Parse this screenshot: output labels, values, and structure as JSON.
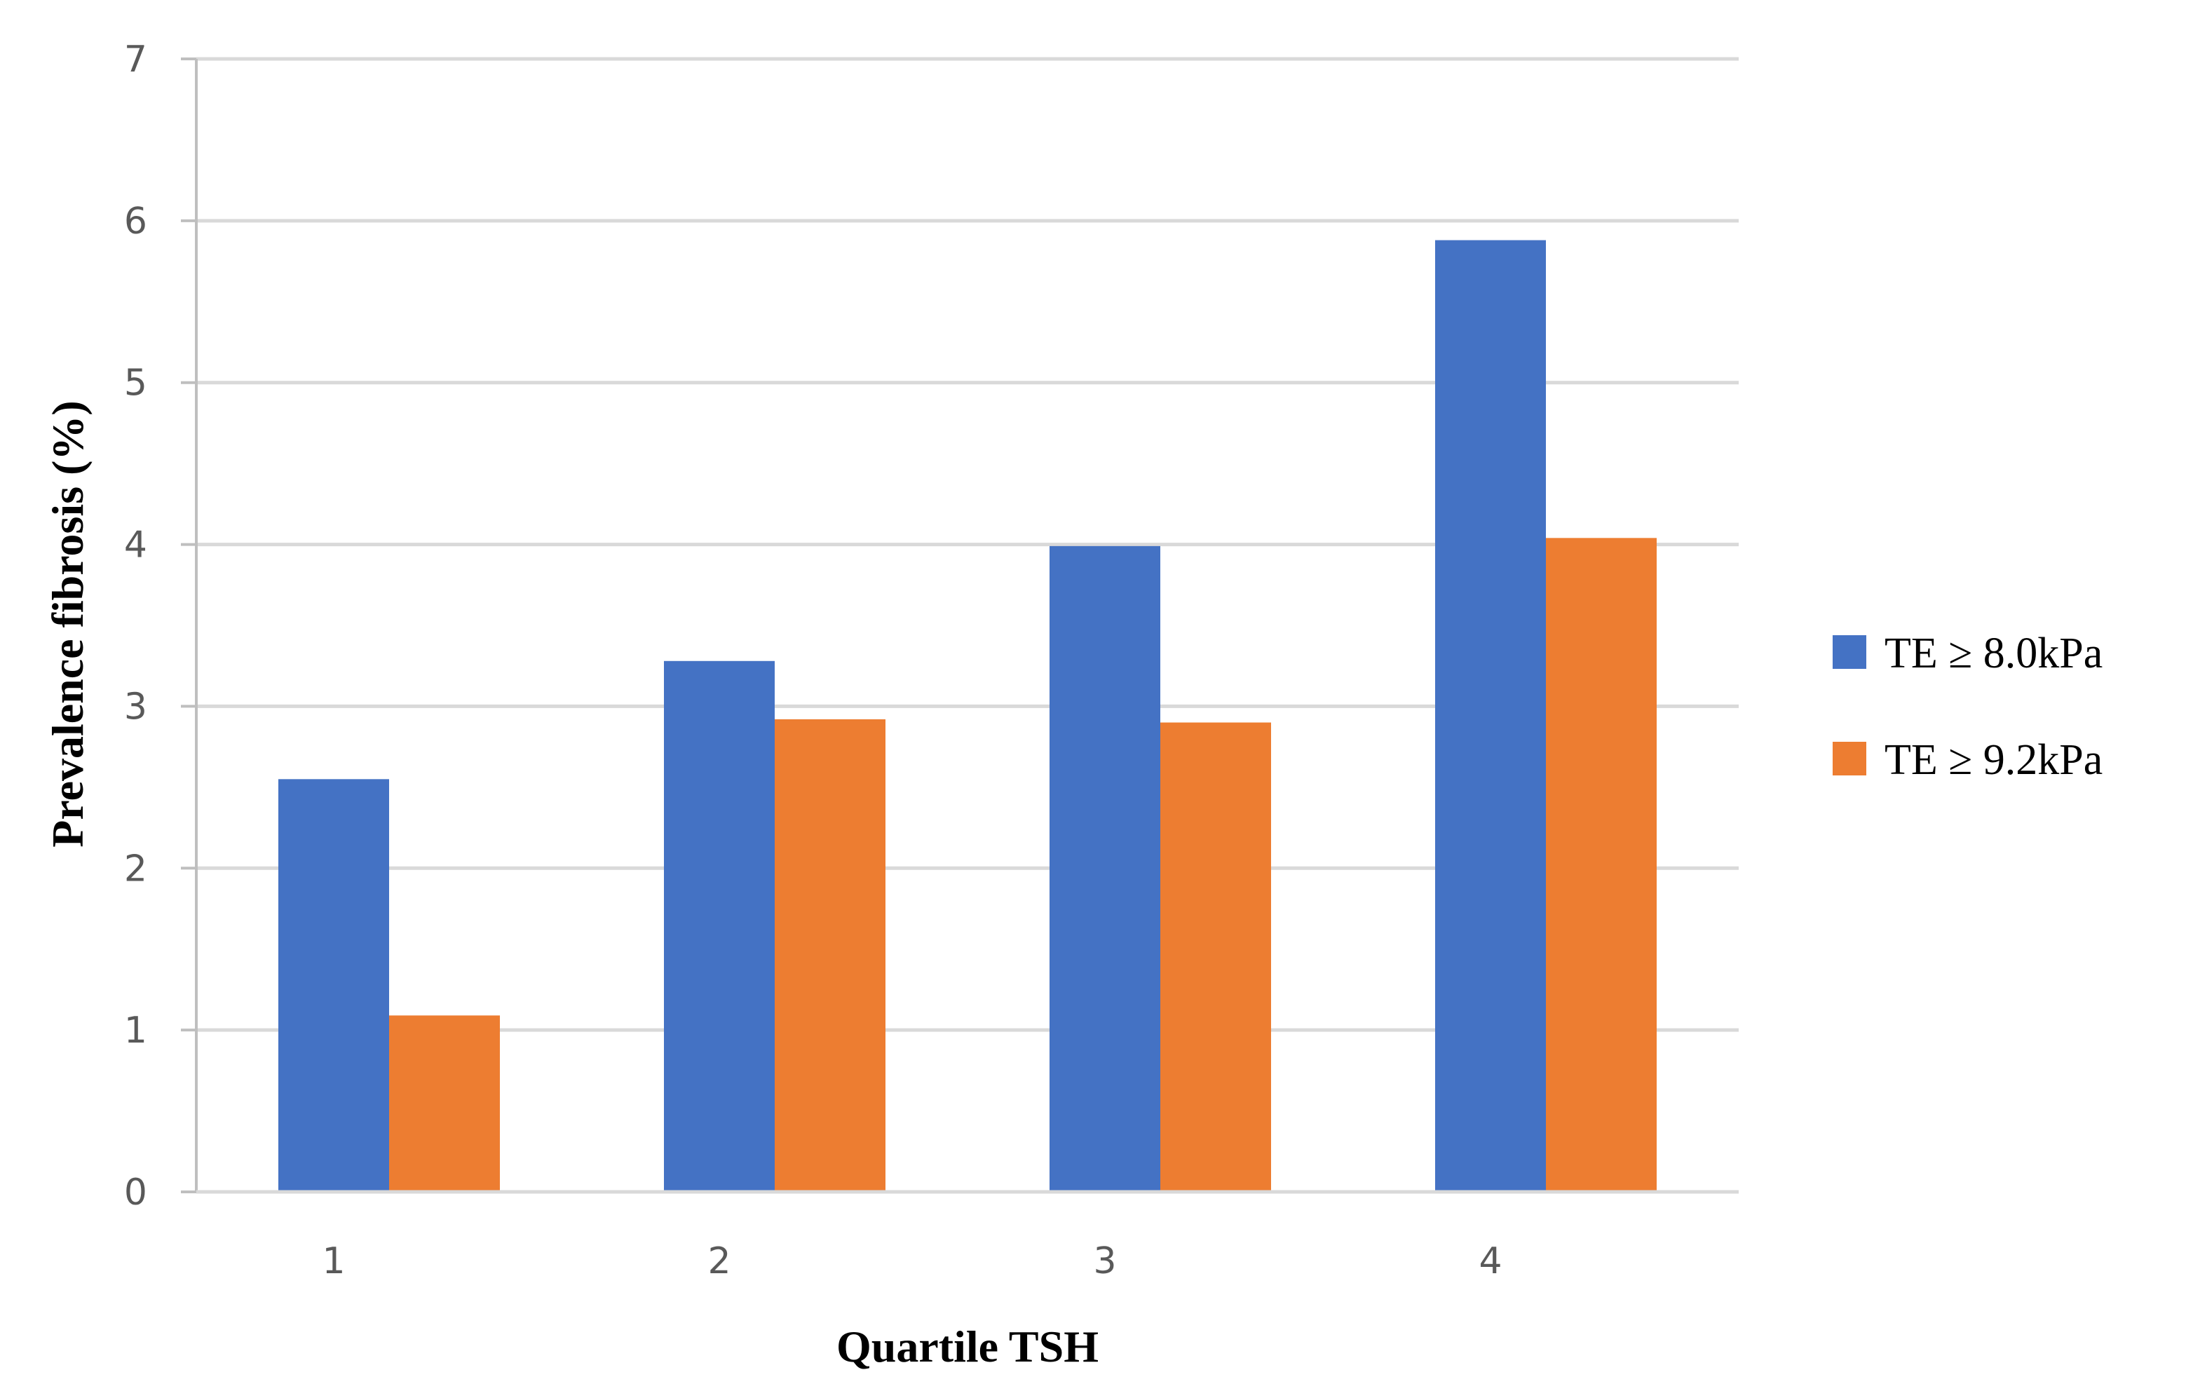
{
  "chart_data": {
    "type": "bar",
    "categories": [
      "1",
      "2",
      "3",
      "4"
    ],
    "series": [
      {
        "name": "TE ≥ 8.0kPa",
        "values": [
          2.55,
          3.28,
          3.99,
          5.88
        ],
        "color": "#4472C4"
      },
      {
        "name": "TE ≥ 9.2kPa",
        "values": [
          1.09,
          2.92,
          2.9,
          4.04
        ],
        "color": "#ED7D31"
      }
    ],
    "xlabel": "Quartile TSH",
    "ylabel": "Prevalence fibrosis (%)",
    "ylim": [
      0,
      7
    ],
    "yticks": [
      "0",
      "1",
      "2",
      "3",
      "4",
      "5",
      "6",
      "7"
    ],
    "grid": true,
    "legend_position": "right"
  }
}
